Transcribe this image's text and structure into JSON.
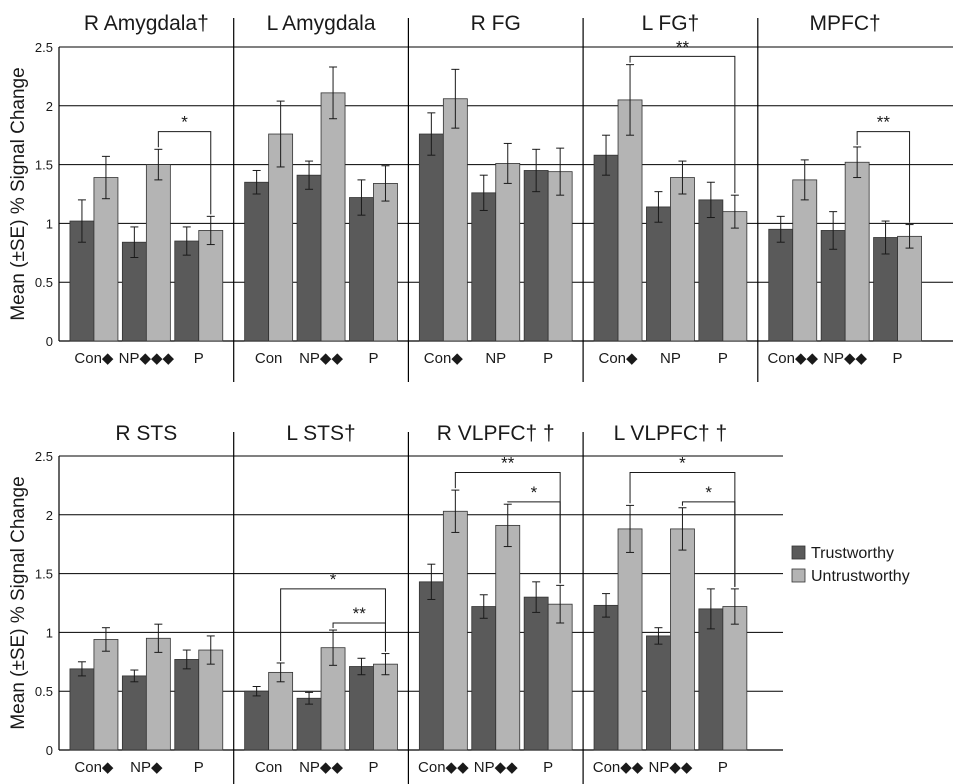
{
  "chart_data": [
    {
      "type": "bar",
      "ylabel": "Mean (±SE) % Signal Change",
      "ylim": [
        0,
        2.5
      ],
      "yticks": [
        "0",
        "0.5",
        "1",
        "1.5",
        "2",
        "2.5"
      ],
      "grid": true,
      "legend": "right",
      "series": [
        {
          "name": "Trustworthy",
          "color": "#5a5a5a"
        },
        {
          "name": "Untrustworthy",
          "color": "#b4b4b4"
        }
      ],
      "panels": [
        {
          "title": "R Amygdala†",
          "categories": [
            "Con◆",
            "NP◆◆◆",
            "P"
          ],
          "trustworthy": [
            1.02,
            0.84,
            0.85
          ],
          "trustworthy_se": [
            0.18,
            0.13,
            0.12
          ],
          "untrustworthy": [
            1.39,
            1.5,
            0.94
          ],
          "untrustworthy_se": [
            0.18,
            0.13,
            0.12
          ],
          "significance": [
            {
              "from": "NP",
              "to": "P",
              "label": "*",
              "y": 1.78
            }
          ]
        },
        {
          "title": "L Amygdala",
          "categories": [
            "Con",
            "NP◆◆",
            "P"
          ],
          "trustworthy": [
            1.35,
            1.41,
            1.22
          ],
          "trustworthy_se": [
            0.1,
            0.12,
            0.15
          ],
          "untrustworthy": [
            1.76,
            2.11,
            1.34
          ],
          "untrustworthy_se": [
            0.28,
            0.22,
            0.15
          ],
          "significance": []
        },
        {
          "title": "R FG",
          "categories": [
            "Con◆",
            "NP",
            "P"
          ],
          "trustworthy": [
            1.76,
            1.26,
            1.45
          ],
          "trustworthy_se": [
            0.18,
            0.15,
            0.18
          ],
          "untrustworthy": [
            2.06,
            1.51,
            1.44
          ],
          "untrustworthy_se": [
            0.25,
            0.17,
            0.2
          ],
          "significance": []
        },
        {
          "title": "L FG†",
          "categories": [
            "Con◆",
            "NP",
            "P"
          ],
          "trustworthy": [
            1.58,
            1.14,
            1.2
          ],
          "trustworthy_se": [
            0.17,
            0.13,
            0.15
          ],
          "untrustworthy": [
            2.05,
            1.39,
            1.1
          ],
          "untrustworthy_se": [
            0.3,
            0.14,
            0.14
          ],
          "significance": [
            {
              "from": "Con",
              "to": "P",
              "label": "**",
              "y": 2.42
            }
          ]
        },
        {
          "title": "MPFC†",
          "categories": [
            "Con◆◆",
            "NP◆◆",
            "P"
          ],
          "trustworthy": [
            0.95,
            0.94,
            0.88
          ],
          "trustworthy_se": [
            0.11,
            0.16,
            0.14
          ],
          "untrustworthy": [
            1.37,
            1.52,
            0.89
          ],
          "untrustworthy_se": [
            0.17,
            0.13,
            0.1
          ],
          "significance": [
            {
              "from": "NP",
              "to": "P",
              "label": "**",
              "y": 1.78
            }
          ]
        }
      ]
    },
    {
      "type": "bar",
      "ylabel": "Mean (±SE) % Signal Change",
      "ylim": [
        0,
        2.5
      ],
      "yticks": [
        "0",
        "0.5",
        "1",
        "1.5",
        "2",
        "2.5"
      ],
      "grid": true,
      "legend": "right",
      "series": [
        {
          "name": "Trustworthy",
          "color": "#5a5a5a"
        },
        {
          "name": "Untrustworthy",
          "color": "#b4b4b4"
        }
      ],
      "panels": [
        {
          "title": "R STS",
          "categories": [
            "Con◆",
            "NP◆",
            "P"
          ],
          "trustworthy": [
            0.69,
            0.63,
            0.77
          ],
          "trustworthy_se": [
            0.06,
            0.05,
            0.08
          ],
          "untrustworthy": [
            0.94,
            0.95,
            0.85
          ],
          "untrustworthy_se": [
            0.1,
            0.12,
            0.12
          ],
          "significance": []
        },
        {
          "title": "L STS†",
          "categories": [
            "Con",
            "NP◆◆",
            "P"
          ],
          "trustworthy": [
            0.5,
            0.44,
            0.71
          ],
          "trustworthy_se": [
            0.04,
            0.05,
            0.07
          ],
          "untrustworthy": [
            0.66,
            0.87,
            0.73
          ],
          "untrustworthy_se": [
            0.08,
            0.15,
            0.09
          ],
          "significance": [
            {
              "from": "Con",
              "to": "P",
              "label": "*",
              "y": 1.37
            },
            {
              "from": "NP",
              "to": "P",
              "label": "**",
              "y": 1.08
            }
          ]
        },
        {
          "title": "R VLPFC† †",
          "categories": [
            "Con◆◆",
            "NP◆◆",
            "P"
          ],
          "trustworthy": [
            1.43,
            1.22,
            1.3
          ],
          "trustworthy_se": [
            0.15,
            0.1,
            0.13
          ],
          "untrustworthy": [
            2.03,
            1.91,
            1.24
          ],
          "untrustworthy_se": [
            0.18,
            0.18,
            0.16
          ],
          "significance": [
            {
              "from": "Con",
              "to": "P",
              "label": "**",
              "y": 2.36
            },
            {
              "from": "NP",
              "to": "P",
              "label": "*",
              "y": 2.11
            }
          ]
        },
        {
          "title": "L VLPFC† †",
          "categories": [
            "Con◆◆",
            "NP◆◆",
            "P"
          ],
          "trustworthy": [
            1.23,
            0.97,
            1.2
          ],
          "trustworthy_se": [
            0.1,
            0.07,
            0.17
          ],
          "untrustworthy": [
            1.88,
            1.88,
            1.22
          ],
          "untrustworthy_se": [
            0.2,
            0.18,
            0.15
          ],
          "significance": [
            {
              "from": "Con",
              "to": "P",
              "label": "*",
              "y": 2.36
            },
            {
              "from": "NP",
              "to": "P",
              "label": "*",
              "y": 2.11
            }
          ]
        }
      ]
    }
  ]
}
